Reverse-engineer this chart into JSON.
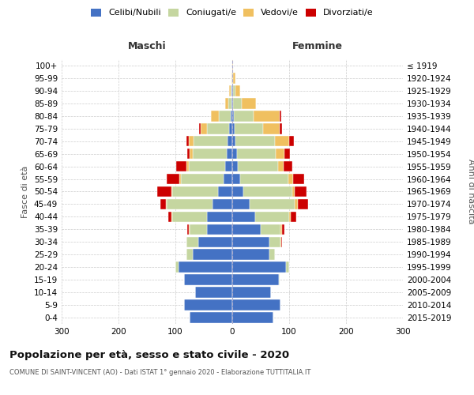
{
  "age_groups": [
    "0-4",
    "5-9",
    "10-14",
    "15-19",
    "20-24",
    "25-29",
    "30-34",
    "35-39",
    "40-44",
    "45-49",
    "50-54",
    "55-59",
    "60-64",
    "65-69",
    "70-74",
    "75-79",
    "80-84",
    "85-89",
    "90-94",
    "95-99",
    "100+"
  ],
  "birth_years": [
    "2015-2019",
    "2010-2014",
    "2005-2009",
    "2000-2004",
    "1995-1999",
    "1990-1994",
    "1985-1989",
    "1980-1984",
    "1975-1979",
    "1970-1974",
    "1965-1969",
    "1960-1964",
    "1955-1959",
    "1950-1954",
    "1945-1949",
    "1940-1944",
    "1935-1939",
    "1930-1934",
    "1925-1929",
    "1920-1924",
    "≤ 1919"
  ],
  "colors": {
    "celibi": "#4472c4",
    "coniugati": "#c5d6a0",
    "vedovi": "#f0c060",
    "divorziati": "#cc0000"
  },
  "males": {
    "celibi": [
      75,
      85,
      65,
      85,
      95,
      70,
      60,
      45,
      45,
      35,
      25,
      15,
      12,
      10,
      8,
      5,
      3,
      2,
      1,
      0,
      0
    ],
    "coniugati": [
      0,
      0,
      0,
      0,
      5,
      10,
      20,
      30,
      60,
      80,
      80,
      75,
      65,
      60,
      60,
      40,
      20,
      5,
      2,
      0,
      0
    ],
    "vedovi": [
      0,
      0,
      0,
      0,
      0,
      0,
      0,
      1,
      2,
      2,
      2,
      3,
      3,
      5,
      8,
      10,
      15,
      5,
      3,
      1,
      0
    ],
    "divorziati": [
      0,
      0,
      0,
      0,
      0,
      0,
      1,
      3,
      5,
      10,
      25,
      22,
      18,
      4,
      5,
      3,
      0,
      0,
      0,
      0,
      0
    ]
  },
  "females": {
    "celibi": [
      72,
      85,
      68,
      82,
      95,
      65,
      65,
      50,
      40,
      30,
      20,
      14,
      10,
      8,
      5,
      4,
      3,
      2,
      1,
      0,
      0
    ],
    "coniugati": [
      0,
      0,
      0,
      2,
      5,
      10,
      20,
      35,
      60,
      80,
      85,
      85,
      70,
      68,
      70,
      50,
      35,
      15,
      5,
      2,
      0
    ],
    "vedovi": [
      0,
      0,
      0,
      0,
      0,
      0,
      1,
      2,
      3,
      5,
      5,
      8,
      10,
      15,
      25,
      30,
      45,
      25,
      8,
      3,
      1
    ],
    "divorziati": [
      0,
      0,
      0,
      0,
      0,
      0,
      2,
      5,
      10,
      18,
      20,
      20,
      15,
      10,
      8,
      3,
      3,
      0,
      0,
      0,
      0
    ]
  },
  "title": "Popolazione per età, sesso e stato civile - 2020",
  "subtitle": "COMUNE DI SAINT-VINCENT (AO) - Dati ISTAT 1° gennaio 2020 - Elaborazione TUTTITALIA.IT",
  "xlabel_left": "Maschi",
  "xlabel_right": "Femmine",
  "ylabel_left": "Fasce di età",
  "ylabel_right": "Anni di nascita",
  "xlim": 300,
  "legend_labels": [
    "Celibi/Nubili",
    "Coniugati/e",
    "Vedovi/e",
    "Divorziati/e"
  ],
  "bg_color": "#ffffff",
  "grid_color": "#cccccc"
}
